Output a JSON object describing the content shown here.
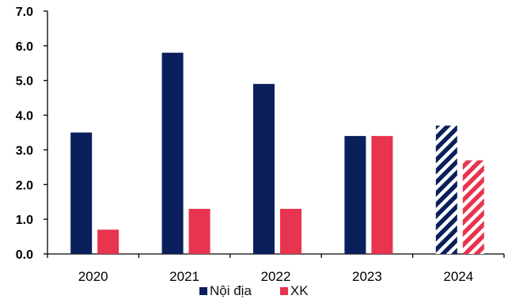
{
  "chart_data": {
    "type": "bar",
    "title": "",
    "xlabel": "",
    "ylabel": "",
    "categories": [
      "2020",
      "2021",
      "2022",
      "2023",
      "2024"
    ],
    "ylim": [
      0,
      7
    ],
    "yticks": [
      "0.0",
      "1.0",
      "2.0",
      "3.0",
      "4.0",
      "5.0",
      "6.0",
      "7.0"
    ],
    "grid": false,
    "legend_position": "bottom",
    "series": [
      {
        "name": "Nội địa",
        "color": "#0a1f5c",
        "values": [
          3.5,
          5.8,
          4.9,
          3.4,
          3.7
        ],
        "hatched": [
          false,
          false,
          false,
          false,
          true
        ]
      },
      {
        "name": "XK",
        "color": "#e8344e",
        "values": [
          0.7,
          1.3,
          1.3,
          3.4,
          2.7
        ],
        "hatched": [
          false,
          false,
          false,
          false,
          true
        ]
      }
    ]
  }
}
